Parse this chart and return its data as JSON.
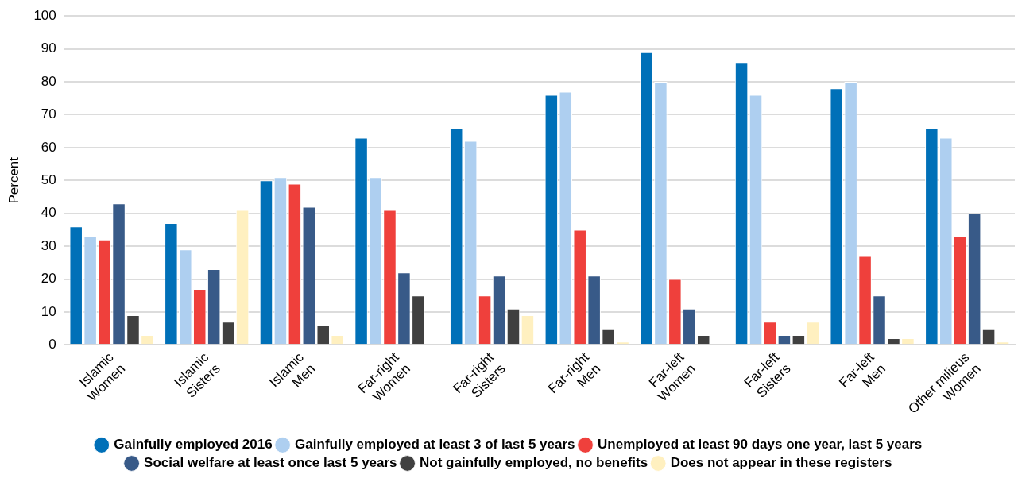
{
  "chart_data": {
    "type": "bar",
    "ylabel": "Percent",
    "categories": [
      "Islamic\nWomen",
      "Islamic\nSisters",
      "Islamic\nMen",
      "Far-right\nWomen",
      "Far-right\nSisters",
      "Far-right\nMen",
      "Far-left\nWomen",
      "Far-left\nSisters",
      "Far-left\nMen",
      "Other milieus\nWomen"
    ],
    "series": [
      {
        "name": "Gainfully employed 2016",
        "color": "#0070b8",
        "values": [
          36,
          37,
          50,
          63,
          66,
          76,
          89,
          86,
          78,
          66
        ]
      },
      {
        "name": "Gainfully employed at least 3 of last 5 years",
        "color": "#aecff0",
        "values": [
          33,
          29,
          51,
          51,
          62,
          77,
          80,
          76,
          80,
          63
        ]
      },
      {
        "name": "Unemployed at least 90 days one year, last 5 years",
        "color": "#ef403c",
        "values": [
          32,
          17,
          49,
          41,
          15,
          35,
          20,
          7,
          27,
          33
        ]
      },
      {
        "name": "Social welfare at least once last 5 years",
        "color": "#385a88",
        "values": [
          43,
          23,
          42,
          22,
          21,
          21,
          11,
          3,
          15,
          40
        ]
      },
      {
        "name": "Not gainfully employed, no benefits",
        "color": "#404040",
        "values": [
          9,
          7,
          6,
          15,
          11,
          5,
          3,
          3,
          2,
          5
        ]
      },
      {
        "name": "Does not appear in these registers",
        "color": "#fff0c0",
        "values": [
          3,
          41,
          3,
          0,
          9,
          1,
          0,
          7,
          2,
          1
        ]
      }
    ],
    "ylim": [
      0,
      100
    ],
    "yticks": [
      0,
      10,
      20,
      30,
      40,
      50,
      60,
      70,
      80,
      90,
      100
    ],
    "grid": "y",
    "legend": "bottom"
  }
}
